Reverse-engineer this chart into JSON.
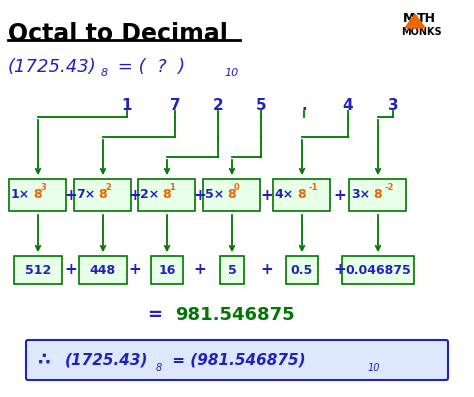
{
  "title": "Octal to Decimal",
  "bg_color": "#ffffff",
  "blue_color": "#2222bb",
  "green_color": "#007700",
  "orange_color": "#ee6600",
  "box_fill": "#e8ffe8",
  "box_edge": "#007700",
  "final_box_fill": "#dde8ff",
  "final_box_edge": "#2222bb",
  "digits": [
    "1",
    "7",
    "2",
    "5",
    ".",
    "4",
    "3"
  ],
  "values": [
    "512",
    "448",
    "16",
    "5",
    "0.5",
    "0.046875"
  ],
  "terms_blue": [
    "1×",
    "7×",
    "2×",
    "5×",
    "4×",
    "3×"
  ],
  "terms_orange_base": [
    "8",
    "8",
    "8",
    "8",
    "8",
    "8"
  ],
  "terms_sup": [
    "3",
    "2",
    "1",
    "0",
    "-1",
    "-2"
  ]
}
